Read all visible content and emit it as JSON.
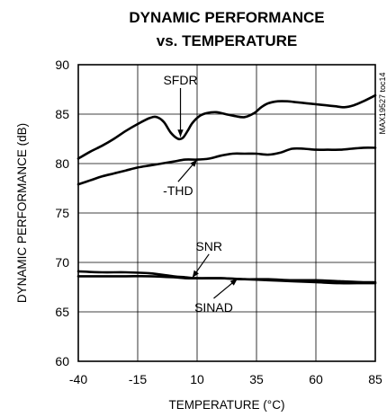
{
  "chart_data": {
    "type": "line",
    "title_lines": [
      "DYNAMIC PERFORMANCE",
      "vs. TEMPERATURE"
    ],
    "xlabel": "TEMPERATURE (°C)",
    "ylabel": "DYNAMIC PERFORMANCE (dB)",
    "side_note": "MAX19527 toc14",
    "xlim": [
      -40,
      85
    ],
    "ylim": [
      60,
      90
    ],
    "x_ticks": [
      -40,
      -15,
      10,
      35,
      60,
      85
    ],
    "y_ticks": [
      60,
      65,
      70,
      75,
      80,
      85,
      90
    ],
    "grid": true,
    "series": [
      {
        "name": "SFDR",
        "x": [
          -40,
          -35,
          -30,
          -25,
          -20,
          -15,
          -10,
          -7,
          -4,
          -1,
          2,
          4,
          6,
          8,
          11,
          14,
          18,
          22,
          26,
          30,
          34,
          37,
          40,
          44,
          48,
          52,
          56,
          60,
          64,
          68,
          72,
          76,
          80,
          85
        ],
        "y": [
          80.5,
          81.2,
          81.8,
          82.5,
          83.3,
          84.0,
          84.6,
          84.7,
          84.2,
          83.1,
          82.5,
          82.6,
          83.3,
          84.1,
          84.8,
          85.1,
          85.2,
          85.0,
          84.8,
          84.7,
          85.1,
          85.7,
          86.1,
          86.3,
          86.3,
          86.2,
          86.1,
          86.0,
          85.9,
          85.8,
          85.7,
          85.9,
          86.3,
          86.9
        ]
      },
      {
        "name": "-THD",
        "x": [
          -40,
          -35,
          -30,
          -25,
          -20,
          -15,
          -10,
          -5,
          0,
          5,
          10,
          15,
          20,
          25,
          30,
          35,
          40,
          45,
          50,
          55,
          60,
          65,
          70,
          75,
          80,
          85
        ],
        "y": [
          77.9,
          78.3,
          78.7,
          79.0,
          79.3,
          79.6,
          79.8,
          80.0,
          80.2,
          80.4,
          80.4,
          80.5,
          80.8,
          81.0,
          81.0,
          81.0,
          80.9,
          81.1,
          81.5,
          81.5,
          81.4,
          81.4,
          81.4,
          81.5,
          81.6,
          81.6
        ]
      },
      {
        "name": "SNR",
        "x": [
          -40,
          -30,
          -20,
          -10,
          0,
          5,
          10,
          20,
          30,
          40,
          50,
          60,
          70,
          80,
          85
        ],
        "y": [
          69.1,
          69.0,
          69.0,
          68.9,
          68.6,
          68.5,
          68.4,
          68.4,
          68.3,
          68.3,
          68.2,
          68.2,
          68.1,
          68.0,
          68.0
        ]
      },
      {
        "name": "SINAD",
        "x": [
          -40,
          -30,
          -20,
          -10,
          0,
          5,
          10,
          20,
          30,
          40,
          50,
          60,
          70,
          80,
          85
        ],
        "y": [
          68.6,
          68.6,
          68.6,
          68.6,
          68.5,
          68.4,
          68.4,
          68.4,
          68.3,
          68.2,
          68.1,
          68.0,
          67.9,
          67.9,
          67.9
        ]
      }
    ],
    "annotations": [
      {
        "text": "SFDR",
        "series": "SFDR",
        "anchor_x": 3,
        "anchor_y": 82.7,
        "label_x": 3,
        "label_y": 88.0
      },
      {
        "text": "-THD",
        "series": "-THD",
        "anchor_x": 10,
        "anchor_y": 80.4,
        "label_x": 2,
        "label_y": 76.8
      },
      {
        "text": "SNR",
        "series": "SNR",
        "anchor_x": 8,
        "anchor_y": 68.45,
        "label_x": 15,
        "label_y": 71.2
      },
      {
        "text": "SINAD",
        "series": "SINAD",
        "anchor_x": 27,
        "anchor_y": 68.35,
        "label_x": 17,
        "label_y": 65.0
      }
    ]
  }
}
